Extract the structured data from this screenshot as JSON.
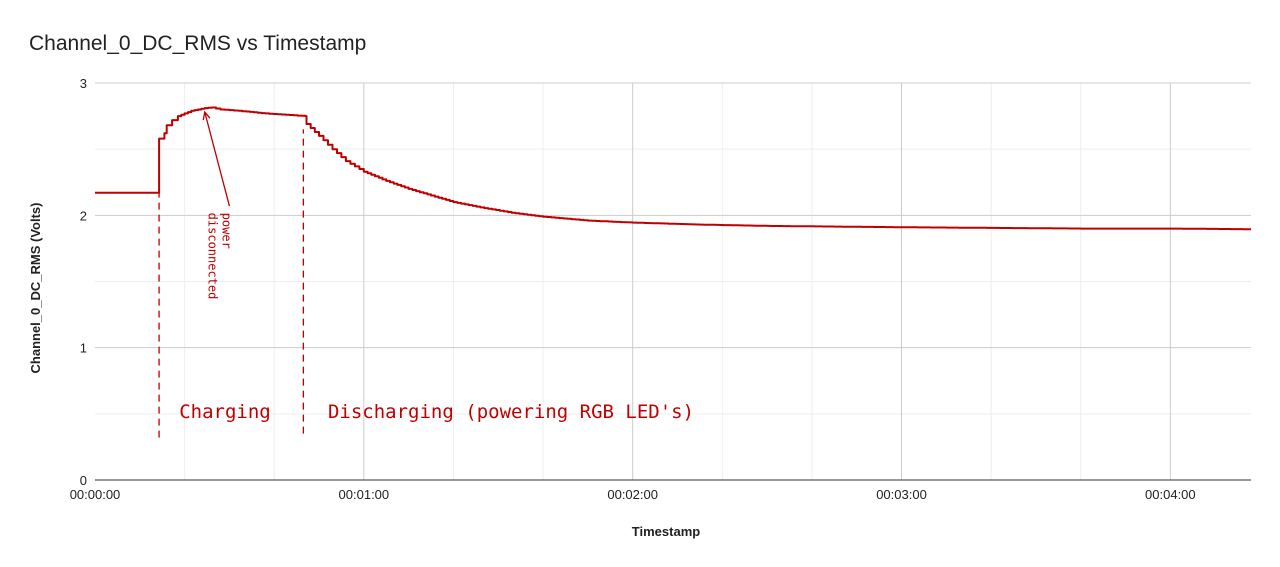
{
  "chart_data": {
    "type": "line",
    "title": "Channel_0_DC_RMS vs Timestamp",
    "xlabel": "Timestamp",
    "ylabel": "Channel_0_DC_RMS (Volts)",
    "x_unit": "seconds",
    "xlim": [
      0,
      258
    ],
    "ylim": [
      0,
      3
    ],
    "y_ticks": [
      0,
      1,
      2,
      3
    ],
    "x_ticks": [
      {
        "value": 0,
        "label": "00:00:00"
      },
      {
        "value": 60,
        "label": "00:01:00"
      },
      {
        "value": 120,
        "label": "00:02:00"
      },
      {
        "value": 180,
        "label": "00:03:00"
      },
      {
        "value": 240,
        "label": "00:04:00"
      }
    ],
    "x_minor_step": 20,
    "y_minor_step": 0.5,
    "grid": true,
    "line_color": "#c00000",
    "series": [
      {
        "points": [
          [
            0,
            2.17
          ],
          [
            14.2,
            2.17
          ],
          [
            14.3,
            2.58
          ],
          [
            15.5,
            2.62
          ],
          [
            16.0,
            2.68
          ],
          [
            17.2,
            2.72
          ],
          [
            18.5,
            2.75
          ],
          [
            20.0,
            2.77
          ],
          [
            21.5,
            2.79
          ],
          [
            23.0,
            2.8
          ],
          [
            24.5,
            2.81
          ],
          [
            26.0,
            2.815
          ],
          [
            28.0,
            2.8
          ],
          [
            32.0,
            2.79
          ],
          [
            38.0,
            2.77
          ],
          [
            47.0,
            2.75
          ],
          [
            47.2,
            2.69
          ],
          [
            50,
            2.6
          ],
          [
            53,
            2.5
          ],
          [
            56,
            2.41
          ],
          [
            60,
            2.33
          ],
          [
            65,
            2.26
          ],
          [
            70,
            2.2
          ],
          [
            75,
            2.15
          ],
          [
            80,
            2.1
          ],
          [
            86,
            2.06
          ],
          [
            93,
            2.02
          ],
          [
            100,
            1.99
          ],
          [
            110,
            1.96
          ],
          [
            120,
            1.945
          ],
          [
            135,
            1.93
          ],
          [
            150,
            1.92
          ],
          [
            165,
            1.915
          ],
          [
            180,
            1.91
          ],
          [
            200,
            1.905
          ],
          [
            220,
            1.9
          ],
          [
            240,
            1.9
          ],
          [
            258,
            1.895
          ]
        ]
      }
    ],
    "markers": [
      {
        "x": 14.3,
        "y_from": 0.32,
        "y_to": 2.17
      },
      {
        "x": 46.5,
        "y_from": 0.35,
        "y_to": 2.65
      }
    ],
    "annotations": [
      {
        "text": "power disconnected",
        "arrow_from": [
          30,
          2.07
        ],
        "arrow_to": [
          24.5,
          2.78
        ],
        "x": 28.5,
        "y": 2.02
      },
      {
        "text": "Charging",
        "x": 18.8,
        "y": 0.47
      },
      {
        "text": "Discharging (powering RGB LED's)",
        "x": 52,
        "y": 0.47
      }
    ]
  }
}
